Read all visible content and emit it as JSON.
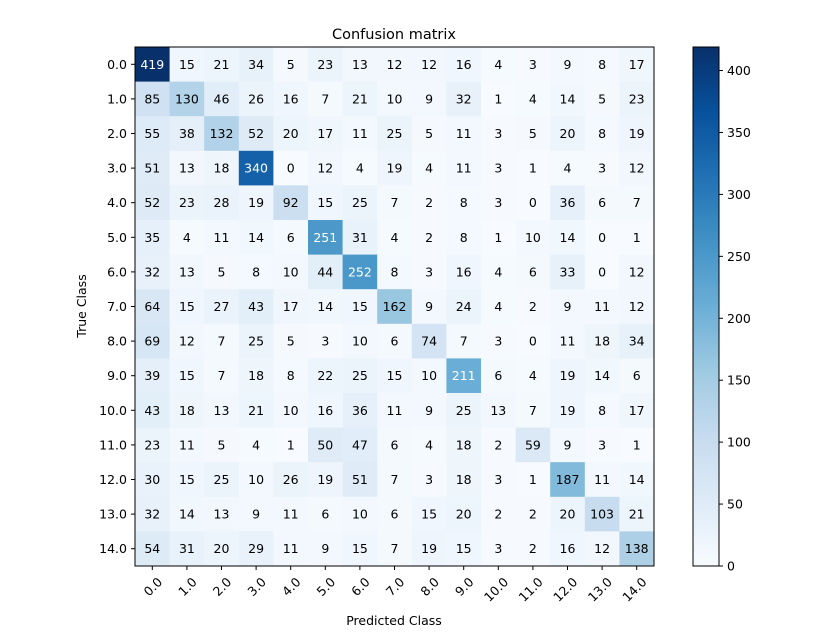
{
  "chart_data": {
    "type": "heatmap",
    "title": "Confusion matrix",
    "xlabel": "Predicted Class",
    "ylabel": "True Class",
    "x_tick_labels": [
      "0.0",
      "1.0",
      "2.0",
      "3.0",
      "4.0",
      "5.0",
      "6.0",
      "7.0",
      "8.0",
      "9.0",
      "10.0",
      "11.0",
      "12.0",
      "13.0",
      "14.0"
    ],
    "y_tick_labels": [
      "0.0",
      "1.0",
      "2.0",
      "3.0",
      "4.0",
      "5.0",
      "6.0",
      "7.0",
      "8.0",
      "9.0",
      "10.0",
      "11.0",
      "12.0",
      "13.0",
      "14.0"
    ],
    "values": [
      [
        419,
        15,
        21,
        34,
        5,
        23,
        13,
        12,
        12,
        16,
        4,
        3,
        9,
        8,
        17
      ],
      [
        85,
        130,
        46,
        26,
        16,
        7,
        21,
        10,
        9,
        32,
        1,
        4,
        14,
        5,
        23
      ],
      [
        55,
        38,
        132,
        52,
        20,
        17,
        11,
        25,
        5,
        11,
        3,
        5,
        20,
        8,
        19
      ],
      [
        51,
        13,
        18,
        340,
        0,
        12,
        4,
        19,
        4,
        11,
        3,
        1,
        4,
        3,
        12
      ],
      [
        52,
        23,
        28,
        19,
        92,
        15,
        25,
        7,
        2,
        8,
        3,
        0,
        36,
        6,
        7
      ],
      [
        35,
        4,
        11,
        14,
        6,
        251,
        31,
        4,
        2,
        8,
        1,
        10,
        14,
        0,
        1
      ],
      [
        32,
        13,
        5,
        8,
        10,
        44,
        252,
        8,
        3,
        16,
        4,
        6,
        33,
        0,
        12
      ],
      [
        64,
        15,
        27,
        43,
        17,
        14,
        15,
        162,
        9,
        24,
        4,
        2,
        9,
        11,
        12
      ],
      [
        69,
        12,
        7,
        25,
        5,
        3,
        10,
        6,
        74,
        7,
        3,
        0,
        11,
        18,
        34
      ],
      [
        39,
        15,
        7,
        18,
        8,
        22,
        25,
        15,
        10,
        211,
        6,
        4,
        19,
        14,
        6
      ],
      [
        43,
        18,
        13,
        21,
        10,
        16,
        36,
        11,
        9,
        25,
        13,
        7,
        19,
        8,
        17
      ],
      [
        23,
        11,
        5,
        4,
        1,
        50,
        47,
        6,
        4,
        18,
        2,
        59,
        9,
        3,
        1
      ],
      [
        30,
        15,
        25,
        10,
        26,
        19,
        51,
        7,
        3,
        18,
        3,
        1,
        187,
        11,
        14
      ],
      [
        32,
        14,
        13,
        9,
        11,
        6,
        10,
        6,
        15,
        20,
        2,
        2,
        20,
        103,
        21
      ],
      [
        54,
        31,
        20,
        29,
        11,
        9,
        15,
        7,
        19,
        15,
        3,
        2,
        16,
        12,
        138
      ]
    ],
    "colormap": "Blues",
    "vmin": 0,
    "vmax": 419,
    "colorbar_ticks": [
      "0",
      "50",
      "100",
      "150",
      "200",
      "250",
      "300",
      "350",
      "400"
    ],
    "grid": false
  }
}
